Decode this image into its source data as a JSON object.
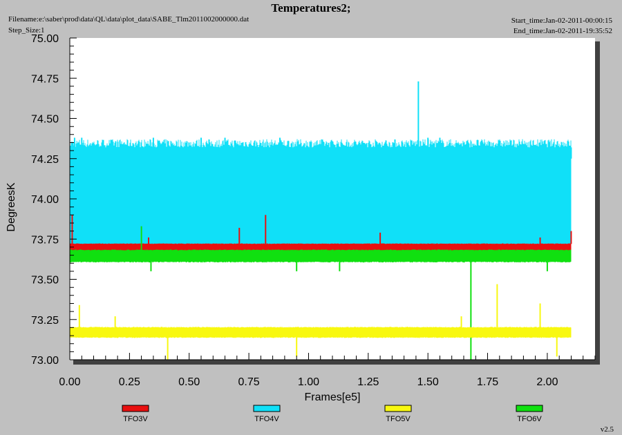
{
  "header": {
    "title": "Temperatures2;",
    "filename": "Filename:e:\\saber\\prod\\data\\QL\\data\\plot_data\\SABE_Tlm2011002000000.dat",
    "step_size": "Step_Size:1",
    "start_time": "Start_time:Jan-02-2011-00:00:15",
    "end_time": "End_time:Jan-02-2011-19:35:52",
    "version": "v2.5"
  },
  "colors": {
    "TFO3V": "#e81010",
    "TFO4V": "#10e0f8",
    "TFO5V": "#f8f810",
    "TFO6V": "#10e010",
    "plot_bg": "#ffffff",
    "frame_bg": "#c0c0c0"
  },
  "chart_data": {
    "type": "line",
    "title": "Temperatures2;",
    "xlabel": "Frames[e5]",
    "ylabel": "DegreesK",
    "xlim": [
      0.0,
      2.2
    ],
    "ylim": [
      73.0,
      75.0
    ],
    "x_ticks": [
      "0.00",
      "0.25",
      "0.50",
      "0.75",
      "1.00",
      "1.25",
      "1.50",
      "1.75",
      "2.00"
    ],
    "y_ticks": [
      "73.00",
      "73.25",
      "73.50",
      "73.75",
      "74.00",
      "74.25",
      "74.50",
      "74.75",
      "75.00"
    ],
    "grid": false,
    "legend_position": "bottom",
    "series": [
      {
        "name": "TFO4V",
        "color": "#10e0f8",
        "x": [
          0.0,
          2.1
        ],
        "band": [
          73.68,
          74.32
        ],
        "notes_points": [
          [
            0.02,
            74.38
          ],
          [
            0.05,
            74.38
          ],
          [
            0.35,
            74.38
          ],
          [
            0.55,
            74.38
          ],
          [
            0.65,
            74.38
          ],
          [
            0.88,
            74.38
          ],
          [
            1.46,
            74.73
          ],
          [
            1.5,
            74.38
          ],
          [
            1.55,
            74.38
          ],
          [
            2.1,
            74.25
          ]
        ]
      },
      {
        "name": "TFO3V",
        "color": "#e81010",
        "x": [
          0.0,
          2.1
        ],
        "band": [
          73.68,
          73.72
        ],
        "spikes": [
          [
            0.01,
            73.9
          ],
          [
            0.33,
            73.76
          ],
          [
            0.71,
            73.82
          ],
          [
            0.82,
            73.9
          ],
          [
            1.3,
            73.79
          ],
          [
            1.97,
            73.76
          ],
          [
            2.1,
            73.8
          ]
        ]
      },
      {
        "name": "TFO6V",
        "color": "#10e010",
        "x": [
          0.0,
          2.1
        ],
        "band": [
          73.61,
          73.68
        ],
        "spikes": [
          [
            0.3,
            73.83
          ],
          [
            0.34,
            73.55
          ],
          [
            0.95,
            73.55
          ],
          [
            1.13,
            73.55
          ],
          [
            1.68,
            73.0
          ],
          [
            2.0,
            73.55
          ]
        ]
      },
      {
        "name": "TFO5V",
        "color": "#f8f810",
        "x": [
          0.0,
          2.1
        ],
        "band": [
          73.14,
          73.2
        ],
        "spikes": [
          [
            0.04,
            73.34
          ],
          [
            0.19,
            73.27
          ],
          [
            0.41,
            73.0
          ],
          [
            0.95,
            73.02
          ],
          [
            1.64,
            73.27
          ],
          [
            1.79,
            73.47
          ],
          [
            1.97,
            73.35
          ],
          [
            2.04,
            73.02
          ]
        ]
      }
    ],
    "legend": [
      "TFO3V",
      "TFO4V",
      "TFO5V",
      "TFO6V"
    ]
  }
}
